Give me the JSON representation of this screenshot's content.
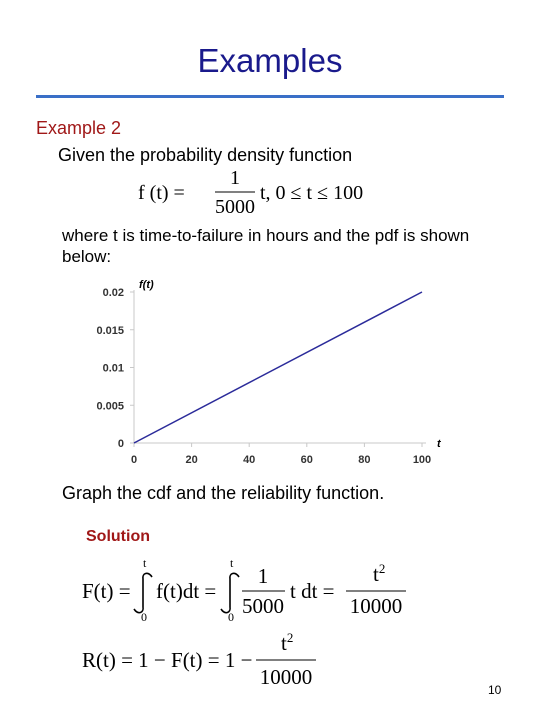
{
  "slide": {
    "title": "Examples",
    "example_heading": "Example 2",
    "given_text": "Given the probability density function",
    "pdf_formula": {
      "lhs": "f (t) =",
      "numerator": "1",
      "denominator": "5000",
      "rhs": "t, 0 ≤ t ≤ 100"
    },
    "where_text": "where t is time-to-failure in hours and the pdf is shown below:",
    "graph_text": "Graph the cdf and the reliability function.",
    "solution_label": "Solution",
    "cdf_formula": {
      "lhs": "F(t) =",
      "int_upper": "t",
      "int_lower": "0",
      "integrand1": "f(t)dt =",
      "frac_num": "1",
      "frac_den": "5000",
      "integrand2": "t dt =",
      "result_num": "t",
      "result_exp": "2",
      "result_den": "10000"
    },
    "rel_formula": {
      "lhs": "R(t) = 1 − F(t) = 1 −",
      "num": "t",
      "exp": "2",
      "den": "10000"
    },
    "page_number": "10"
  },
  "chart_data": {
    "type": "line",
    "xlabel": "t",
    "ylabel": "f(t)",
    "x_ticks": [
      "0",
      "20",
      "40",
      "60",
      "80",
      "100"
    ],
    "y_ticks": [
      "0",
      "0.005",
      "0.01",
      "0.015",
      "0.02"
    ],
    "xlim": [
      0,
      100
    ],
    "ylim": [
      0,
      0.02
    ],
    "grid": false,
    "series": [
      {
        "x": [
          0,
          100
        ],
        "y": [
          0,
          0.02
        ],
        "color": "#2b2b9a"
      }
    ]
  }
}
